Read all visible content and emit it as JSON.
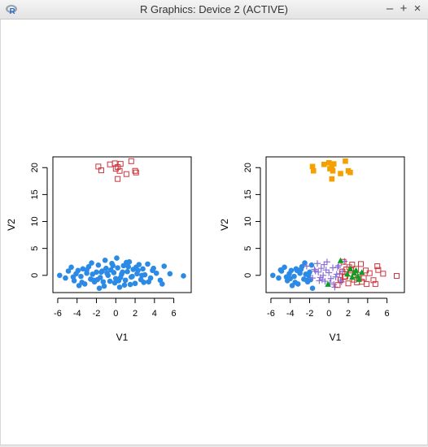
{
  "window": {
    "title": "R Graphics: Device 2 (ACTIVE)",
    "controls": [
      "–",
      "+",
      "×"
    ]
  },
  "colors": {
    "blue": "#2b8ae6",
    "red": "#d0333b",
    "orange": "#f5a000",
    "purple": "#8a6fd8",
    "green": "#0aa020"
  },
  "chart_data": [
    {
      "type": "scatter",
      "title": "",
      "xlabel": "V1",
      "ylabel": "V2",
      "xlim": [
        -6.5,
        7.8
      ],
      "ylim": [
        -3.2,
        22
      ],
      "xticks": [
        -6,
        -4,
        -2,
        0,
        2,
        4,
        6
      ],
      "yticks": [
        0,
        5,
        10,
        15,
        20
      ],
      "series": [
        {
          "color": "blue",
          "shape": "filled-circle",
          "x": [
            -5.8,
            -5.2,
            -4.9,
            -4.6,
            -4.3,
            -4.1,
            -3.9,
            -3.6,
            -3.4,
            -3.2,
            -3.0,
            -2.8,
            -2.6,
            -2.4,
            -2.2,
            -2.0,
            -1.8,
            -1.6,
            -1.4,
            -1.2,
            -1.0,
            -0.8,
            -0.6,
            -0.4,
            -0.2,
            0.0,
            0.2,
            0.4,
            0.6,
            0.8,
            1.0,
            1.2,
            1.4,
            1.6,
            1.8,
            2.0,
            2.2,
            2.4,
            2.6,
            2.8,
            3.0,
            3.4,
            3.8,
            4.2,
            4.6,
            5.0,
            5.6,
            7.0,
            -4.4,
            -3.8,
            -3.0,
            -2.5,
            -1.9,
            -1.5,
            -1.1,
            -0.5,
            0.1,
            0.5,
            0.9,
            1.3,
            1.7,
            2.3,
            2.9,
            3.3,
            3.9,
            -2.3,
            -1.7,
            -0.9,
            -0.1,
            0.7,
            1.5,
            2.1,
            4.8,
            -0.3,
            0.3,
            1.1,
            -1.3,
            2.7,
            -3.5,
            3.6
          ],
          "y": [
            0.0,
            -0.5,
            0.8,
            1.5,
            -1.0,
            0.3,
            0.9,
            -0.2,
            1.2,
            -1.6,
            0.4,
            1.6,
            -0.7,
            0.2,
            -1.2,
            0.6,
            1.9,
            -0.4,
            0.8,
            -2.0,
            1.3,
            0.0,
            -1.1,
            2.2,
            0.5,
            -0.6,
            1.4,
            -2.2,
            0.2,
            1.8,
            -0.9,
            0.7,
            2.5,
            -0.3,
            1.1,
            -1.5,
            0.3,
            2.0,
            -0.8,
            1.2,
            0.1,
            -1.2,
            0.9,
            0.4,
            -0.9,
            1.7,
            0.3,
            -0.1,
            -0.3,
            -1.9,
            1.0,
            2.3,
            -0.8,
            0.6,
            2.8,
            1.0,
            3.2,
            -0.4,
            -1.8,
            1.6,
            -0.2,
            0.9,
            -1.3,
            2.1,
            1.3,
            -0.9,
            -2.4,
            0.4,
            -1.4,
            0.6,
            -1.7,
            1.5,
            -1.6,
            1.8,
            -1.0,
            2.4,
            -1.2,
            0.0,
            -1.3,
            -0.5
          ]
        },
        {
          "color": "red",
          "shape": "open-square",
          "x": [
            -1.8,
            -1.5,
            -0.6,
            -0.1,
            0.2,
            0.5,
            0.0,
            0.4,
            1.1,
            1.6,
            2.1,
            2.0,
            0.2
          ],
          "y": [
            20.2,
            19.5,
            20.6,
            20.8,
            20.1,
            20.7,
            19.8,
            19.4,
            18.8,
            21.2,
            19.1,
            19.4,
            17.9
          ]
        }
      ]
    },
    {
      "type": "scatter",
      "title": "",
      "xlabel": "V1",
      "ylabel": "V2",
      "xlim": [
        -6.5,
        7.8
      ],
      "ylim": [
        -3.2,
        22
      ],
      "xticks": [
        -6,
        -4,
        -2,
        0,
        2,
        4,
        6
      ],
      "yticks": [
        0,
        5,
        10,
        15,
        20
      ],
      "series": [
        {
          "color": "orange",
          "shape": "filled-square",
          "x": [
            -1.7,
            -1.6,
            -0.5,
            0.0,
            0.3,
            0.5,
            0.1,
            0.4,
            1.2,
            1.7,
            2.2,
            2.0,
            0.3
          ],
          "y": [
            20.2,
            19.4,
            20.6,
            20.9,
            20.2,
            20.7,
            19.8,
            19.4,
            18.9,
            21.2,
            19.1,
            19.4,
            17.9
          ]
        },
        {
          "color": "blue",
          "shape": "filled-circle",
          "x": [
            -5.8,
            -5.2,
            -4.9,
            -4.6,
            -4.3,
            -4.1,
            -3.9,
            -3.6,
            -3.4,
            -3.2,
            -3.0,
            -2.8,
            -2.6,
            -2.4,
            -2.2,
            -2.0,
            -1.8,
            -4.4,
            -3.8,
            -3.5,
            -2.5,
            -1.9,
            -2.3,
            -1.7,
            -3.3,
            -4.0,
            -2.9,
            -2.1,
            -5.0
          ],
          "y": [
            0.0,
            -0.5,
            0.8,
            1.5,
            -1.0,
            0.3,
            0.9,
            -0.2,
            1.2,
            -1.6,
            0.4,
            1.6,
            -0.7,
            0.2,
            -1.2,
            0.6,
            1.9,
            -0.3,
            -1.9,
            -1.3,
            2.3,
            -0.8,
            -0.9,
            -2.4,
            0.9,
            -0.6,
            1.1,
            0.0,
            1.0
          ]
        },
        {
          "color": "purple",
          "shape": "plus",
          "x": [
            -2.3,
            -1.7,
            -1.4,
            -1.2,
            -1.0,
            -0.8,
            -0.6,
            -0.4,
            -0.2,
            0.0,
            0.2,
            0.4,
            0.6,
            0.8,
            1.0,
            1.2,
            1.4,
            1.6,
            -0.9,
            -0.3,
            0.5,
            1.1,
            -1.1,
            0.1,
            0.9,
            -0.5,
            1.3,
            0.7,
            -1.5,
            -0.7
          ],
          "y": [
            1.7,
            -0.5,
            0.8,
            2.2,
            -1.0,
            1.3,
            0.0,
            -1.1,
            2.5,
            0.5,
            -0.6,
            1.4,
            -2.2,
            0.2,
            1.8,
            -0.9,
            0.7,
            2.6,
            -0.4,
            1.0,
            -1.7,
            0.3,
            0.6,
            -1.4,
            1.5,
            2.0,
            -1.2,
            -0.3,
            1.1,
            -0.8
          ]
        },
        {
          "color": "red",
          "shape": "open-square",
          "x": [
            1.2,
            1.4,
            1.6,
            1.8,
            2.0,
            2.2,
            2.4,
            2.6,
            2.8,
            3.0,
            3.4,
            3.8,
            4.2,
            4.6,
            5.0,
            5.6,
            7.0,
            1.7,
            2.3,
            2.9,
            3.3,
            3.9,
            2.1,
            4.8,
            2.7,
            3.6,
            1.5,
            0.9,
            5.1
          ],
          "y": [
            -0.9,
            0.7,
            -0.3,
            1.1,
            -1.5,
            0.3,
            2.0,
            -0.8,
            1.2,
            0.1,
            -1.2,
            0.9,
            0.4,
            -0.9,
            1.7,
            0.3,
            -0.1,
            -0.2,
            0.9,
            -1.3,
            2.1,
            -1.6,
            1.5,
            -1.6,
            0.0,
            -0.5,
            2.5,
            -1.8,
            1.0
          ]
        },
        {
          "color": "green",
          "shape": "filled-triangle",
          "x": [
            1.2,
            1.9,
            2.4,
            2.8,
            3.1,
            3.4,
            2.2,
            3.0,
            -0.1,
            2.6
          ],
          "y": [
            2.7,
            0.2,
            -0.4,
            0.9,
            -0.8,
            0.5,
            1.2,
            -0.2,
            -1.7,
            0.4
          ]
        }
      ]
    }
  ]
}
